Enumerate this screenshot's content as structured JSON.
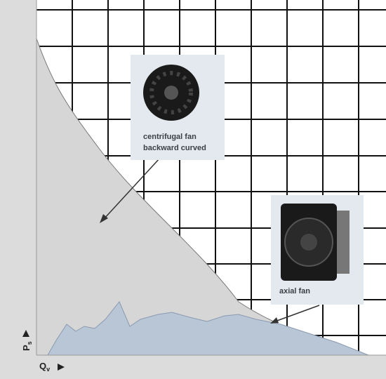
{
  "callouts": [
    {
      "lines": [
        "centrifugal fan",
        "backward curved"
      ]
    },
    {
      "lines": [
        "axial fan"
      ]
    }
  ],
  "axes": {
    "y": {
      "symbol": "P",
      "subscript": "s"
    },
    "x": {
      "symbol": "Q",
      "subscript": "v"
    }
  }
}
